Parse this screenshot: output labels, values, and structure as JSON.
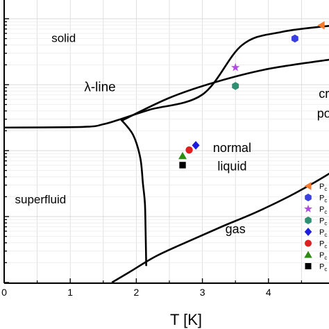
{
  "chart_data": {
    "type": "scatter",
    "title": "",
    "xlabel": "T [K]",
    "ylabel": "",
    "xlim": [
      0,
      5
    ],
    "x_ticks": [
      0,
      1,
      2,
      3,
      4
    ],
    "y_scale": "log",
    "y_decades": 4,
    "grid": true,
    "legend_position": "right",
    "regions": [
      {
        "name": "solid",
        "label": "solid",
        "x": 0.9,
        "y_decade": 3.65,
        "size": 17
      },
      {
        "name": "superfluid",
        "label": "superfluid",
        "x": 0.55,
        "y_decade": 1.2,
        "size": 17
      },
      {
        "name": "normal-liquid-1",
        "label": "normal",
        "x": 3.45,
        "y_decade": 1.98,
        "size": 18
      },
      {
        "name": "normal-liquid-2",
        "label": "liquid",
        "x": 3.45,
        "y_decade": 1.7,
        "size": 18
      },
      {
        "name": "gas",
        "label": "gas",
        "x": 3.5,
        "y_decade": 0.75,
        "size": 18
      },
      {
        "name": "lambda-line",
        "label": "λ-line",
        "x": 1.45,
        "y_decade": 2.9,
        "size": 19
      },
      {
        "name": "critical-point-1",
        "label": "cr",
        "x": 4.84,
        "y_decade": 2.8,
        "size": 18
      },
      {
        "name": "critical-point-2",
        "label": "po",
        "x": 4.84,
        "y_decade": 2.5,
        "size": 18
      }
    ],
    "boundaries": [
      {
        "name": "melting-curve",
        "points": [
          [
            0,
            2.35
          ],
          [
            1.2,
            2.36
          ],
          [
            1.5,
            2.4
          ],
          [
            1.74,
            2.47
          ],
          [
            2.2,
            2.62
          ],
          [
            3,
            2.85
          ],
          [
            3.6,
            3.6
          ],
          [
            4.2,
            3.8
          ],
          [
            5,
            3.9
          ]
        ]
      },
      {
        "name": "solid-superfluid-boundary",
        "points": [
          [
            1.77,
            2.45
          ],
          [
            2.5,
            2.8
          ],
          [
            3.2,
            3.04
          ],
          [
            4,
            3.24
          ],
          [
            5,
            3.39
          ]
        ]
      },
      {
        "name": "lambda-line-curve",
        "points": [
          [
            1.77,
            2.47
          ],
          [
            1.95,
            2.24
          ],
          [
            2.06,
            1.89
          ],
          [
            2.1,
            1.5
          ],
          [
            2.13,
            1.2
          ],
          [
            2.14,
            0.8
          ],
          [
            2.15,
            0.25
          ]
        ]
      },
      {
        "name": "vaporization-curve",
        "points": [
          [
            1.63,
            0
          ],
          [
            1.9,
            0.16
          ],
          [
            2.3,
            0.4
          ],
          [
            2.8,
            0.63
          ],
          [
            3.3,
            0.85
          ],
          [
            3.8,
            1.06
          ],
          [
            4.3,
            1.3
          ],
          [
            4.7,
            1.52
          ],
          [
            5,
            1.7
          ]
        ]
      }
    ],
    "series": [
      {
        "name": "",
        "marker": "triangle-left",
        "color": "#f47a2d",
        "x": 4.8,
        "y_decade": 3.9
      },
      {
        "name": "",
        "marker": "hexagon",
        "color": "#3a3fe0",
        "x": 4.4,
        "y_decade": 3.7
      },
      {
        "name": "",
        "marker": "star",
        "color": "#b04ae2",
        "x": 3.5,
        "y_decade": 3.26
      },
      {
        "name": "",
        "marker": "hexagon",
        "color": "#2f8f73",
        "x": 3.5,
        "y_decade": 2.98
      },
      {
        "name": "",
        "marker": "diamond",
        "color": "#1d1de0",
        "x": 2.9,
        "y_decade": 2.08
      },
      {
        "name": "",
        "marker": "circle",
        "color": "#e02020",
        "x": 2.8,
        "y_decade": 2.01
      },
      {
        "name": "",
        "marker": "triangle-up",
        "color": "#2e8c13",
        "x": 2.7,
        "y_decade": 1.92
      },
      {
        "name": "",
        "marker": "square",
        "color": "#000000",
        "x": 2.7,
        "y_decade": 1.78
      }
    ],
    "legend": [
      {
        "marker": "triangle-left",
        "color": "#f47a2d",
        "label": "P",
        "sub": "c"
      },
      {
        "marker": "hexagon",
        "color": "#3a3fe0",
        "label": "P",
        "sub": "c"
      },
      {
        "marker": "star",
        "color": "#b04ae2",
        "label": "P",
        "sub": "c"
      },
      {
        "marker": "hexagon",
        "color": "#2f8f73",
        "label": "P",
        "sub": "c"
      },
      {
        "marker": "diamond",
        "color": "#1d1de0",
        "label": "P",
        "sub": "c"
      },
      {
        "marker": "circle",
        "color": "#e02020",
        "label": "P",
        "sub": "c"
      },
      {
        "marker": "triangle-up",
        "color": "#2e8c13",
        "label": "P",
        "sub": "c"
      },
      {
        "marker": "square",
        "color": "#000000",
        "label": "P",
        "sub": "c"
      }
    ]
  }
}
